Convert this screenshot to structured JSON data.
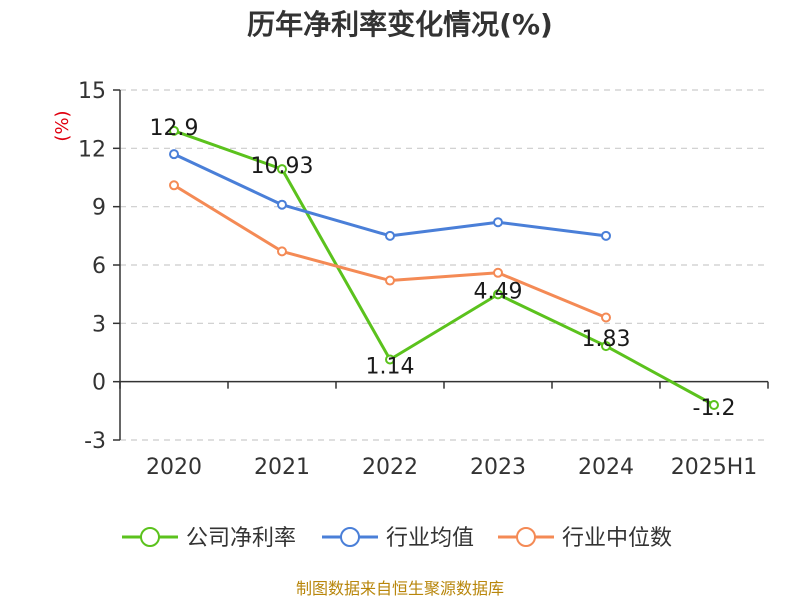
{
  "chart_data": {
    "type": "line",
    "title": "历年净利率变化情况(%)",
    "unit_label": "(%)",
    "categories": [
      "2020",
      "2021",
      "2022",
      "2023",
      "2024",
      "2025H1"
    ],
    "ylim": [
      -3,
      15
    ],
    "yticks": [
      -3,
      0,
      3,
      6,
      9,
      12,
      15
    ],
    "grid": true,
    "legend_position": "bottom",
    "series": [
      {
        "name": "公司净利率",
        "color": "#5bc21d",
        "values": [
          12.9,
          10.93,
          1.14,
          4.49,
          1.83,
          -1.2
        ],
        "labels": [
          "12.9",
          "10.93",
          "1.14",
          "4.49",
          "1.83",
          "-1.2"
        ]
      },
      {
        "name": "行业均值",
        "color": "#4a7fd8",
        "values": [
          11.7,
          9.1,
          7.5,
          8.2,
          7.5,
          null
        ]
      },
      {
        "name": "行业中位数",
        "color": "#f48a55",
        "values": [
          10.1,
          6.7,
          5.2,
          5.6,
          3.3,
          null
        ]
      }
    ]
  },
  "source_text": "制图数据来自恒生聚源数据库"
}
